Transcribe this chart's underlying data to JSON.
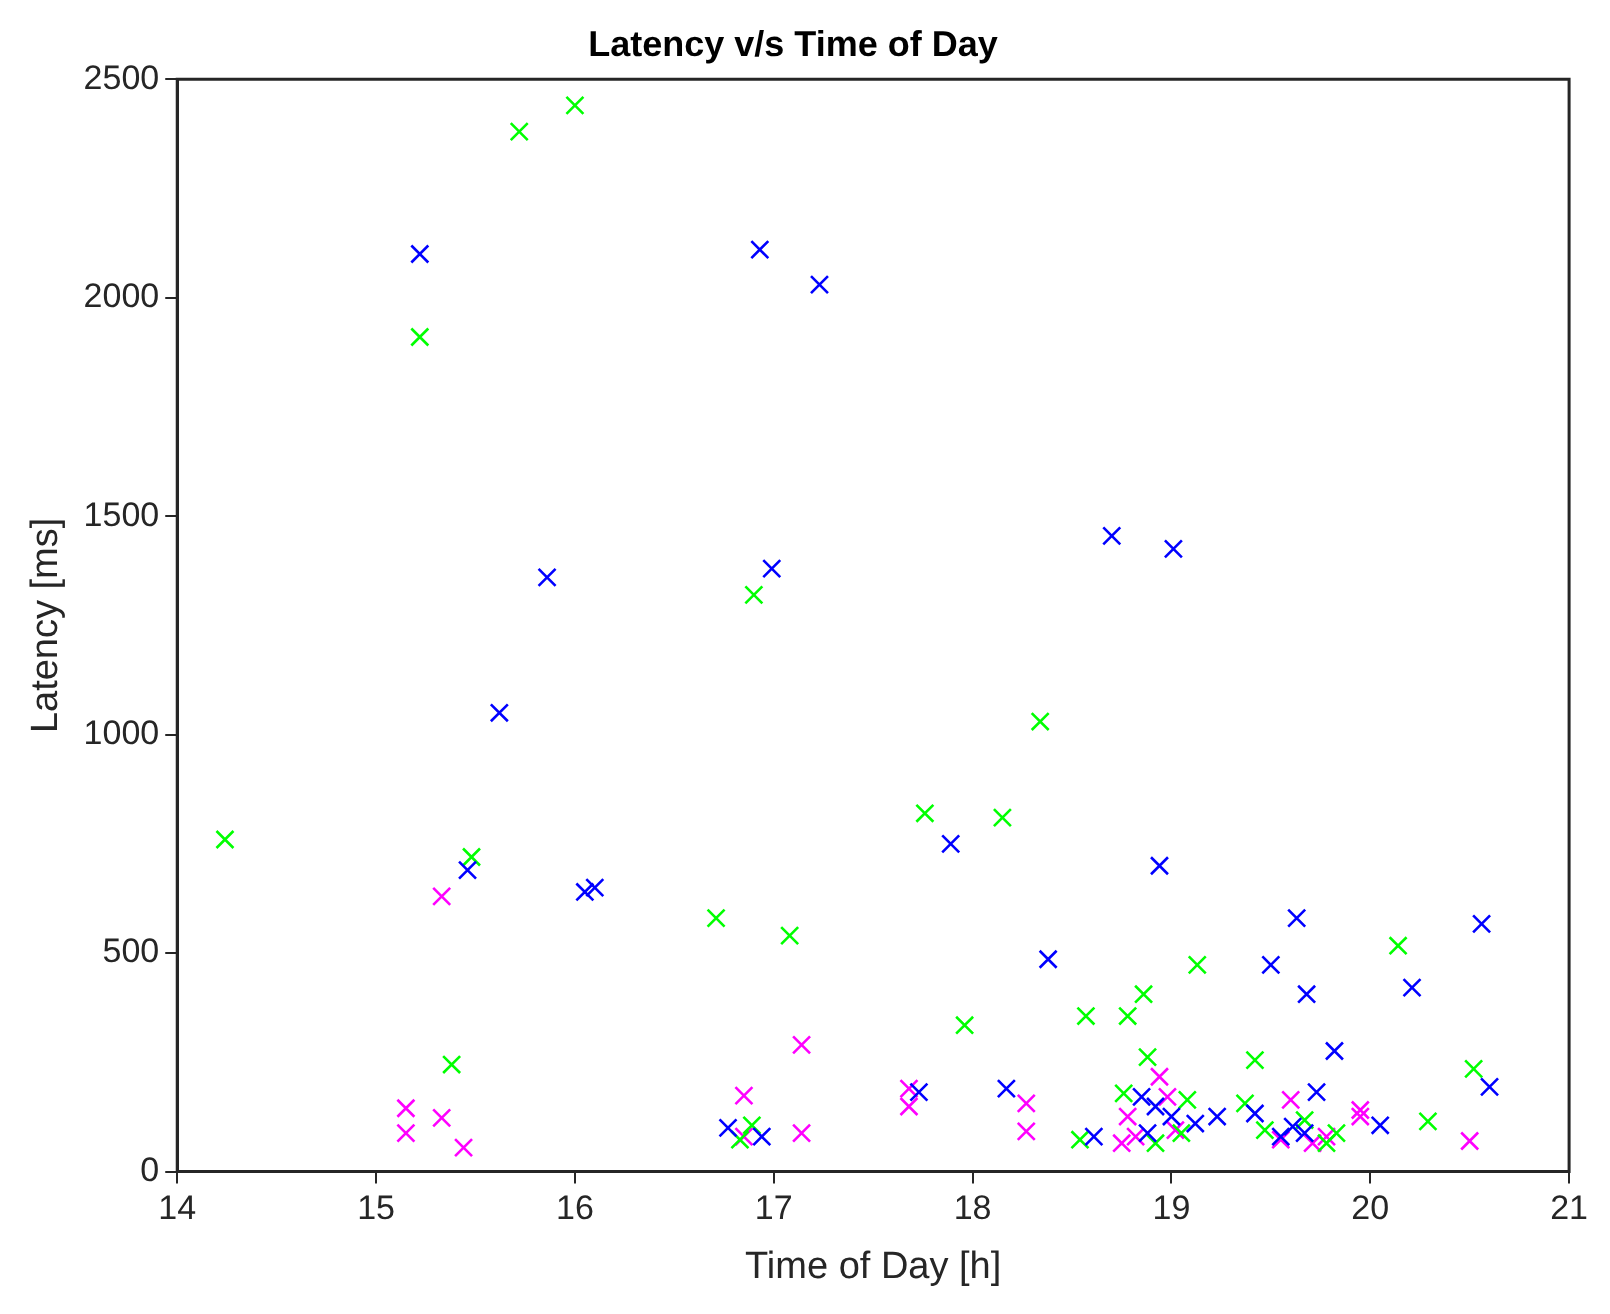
{
  "chart_data": {
    "type": "scatter",
    "title": "Latency v/s Time of Day",
    "xlabel": "Time of Day [h]",
    "ylabel": "Latency [ms]",
    "xlim": [
      14,
      21
    ],
    "xticks": [
      14,
      15,
      16,
      17,
      18,
      19,
      20,
      21
    ],
    "ylim": [
      0,
      2500
    ],
    "yticks": [
      0,
      500,
      1000,
      1500,
      2000,
      2500
    ],
    "grid": false,
    "legend": false,
    "marker": "cross",
    "series": [
      {
        "color": "#0000ff",
        "x": [
          15.22,
          16.93,
          17.23,
          15.86,
          15.62,
          16.99,
          18.7,
          19.01,
          17.89,
          18.94,
          15.46,
          16.05,
          16.1,
          16.77,
          16.94,
          18.38,
          17.73,
          18.17,
          18.61,
          18.85,
          18.92,
          19.0,
          19.12,
          19.23,
          19.42,
          18.88,
          19.63,
          20.56,
          19.5,
          19.68,
          20.21,
          19.82,
          20.6,
          19.73,
          20.05,
          19.67,
          19.55,
          19.61
        ],
        "values": [
          2100,
          2110,
          2030,
          1360,
          1050,
          1380,
          1455,
          1425,
          750,
          700,
          690,
          640,
          650,
          100,
          80,
          486,
          182,
          190,
          80,
          171,
          149,
          126,
          110,
          126,
          133,
          88,
          580,
          567,
          473,
          406,
          421,
          276,
          194,
          182,
          106,
          88,
          80,
          103
        ]
      },
      {
        "color": "#00ff00",
        "x": [
          14.24,
          15.22,
          15.72,
          16.0,
          16.9,
          17.76,
          18.15,
          18.34,
          15.48,
          15.38,
          16.71,
          17.08,
          16.89,
          16.83,
          17.96,
          18.57,
          18.78,
          18.86,
          19.13,
          18.88,
          18.54,
          18.76,
          19.08,
          19.37,
          19.42,
          18.92,
          19.05,
          20.14,
          20.52,
          20.29,
          19.83,
          19.47,
          19.67,
          19.78
        ],
        "values": [
          760,
          1910,
          2380,
          2440,
          1320,
          820,
          810,
          1030,
          720,
          245,
          580,
          540,
          106,
          73,
          335,
          356,
          356,
          406,
          473,
          262,
          73,
          179,
          164,
          156,
          255,
          65,
          88,
          517,
          235,
          115,
          88,
          95,
          118,
          65
        ]
      },
      {
        "color": "#ff00ff",
        "x": [
          15.33,
          15.15,
          15.15,
          15.33,
          15.44,
          17.14,
          16.85,
          16.85,
          17.14,
          17.68,
          17.68,
          18.27,
          18.27,
          18.94,
          18.98,
          18.78,
          18.75,
          18.82,
          19.02,
          19.6,
          19.95,
          19.95,
          20.5,
          19.78,
          19.55,
          19.58,
          19.71
        ],
        "values": [
          630,
          145,
          88,
          123,
          55,
          290,
          174,
          80,
          88,
          190,
          149,
          156,
          92,
          217,
          171,
          126,
          65,
          80,
          95,
          164,
          141,
          126,
          70,
          80,
          73,
          null,
          65
        ]
      }
    ]
  }
}
